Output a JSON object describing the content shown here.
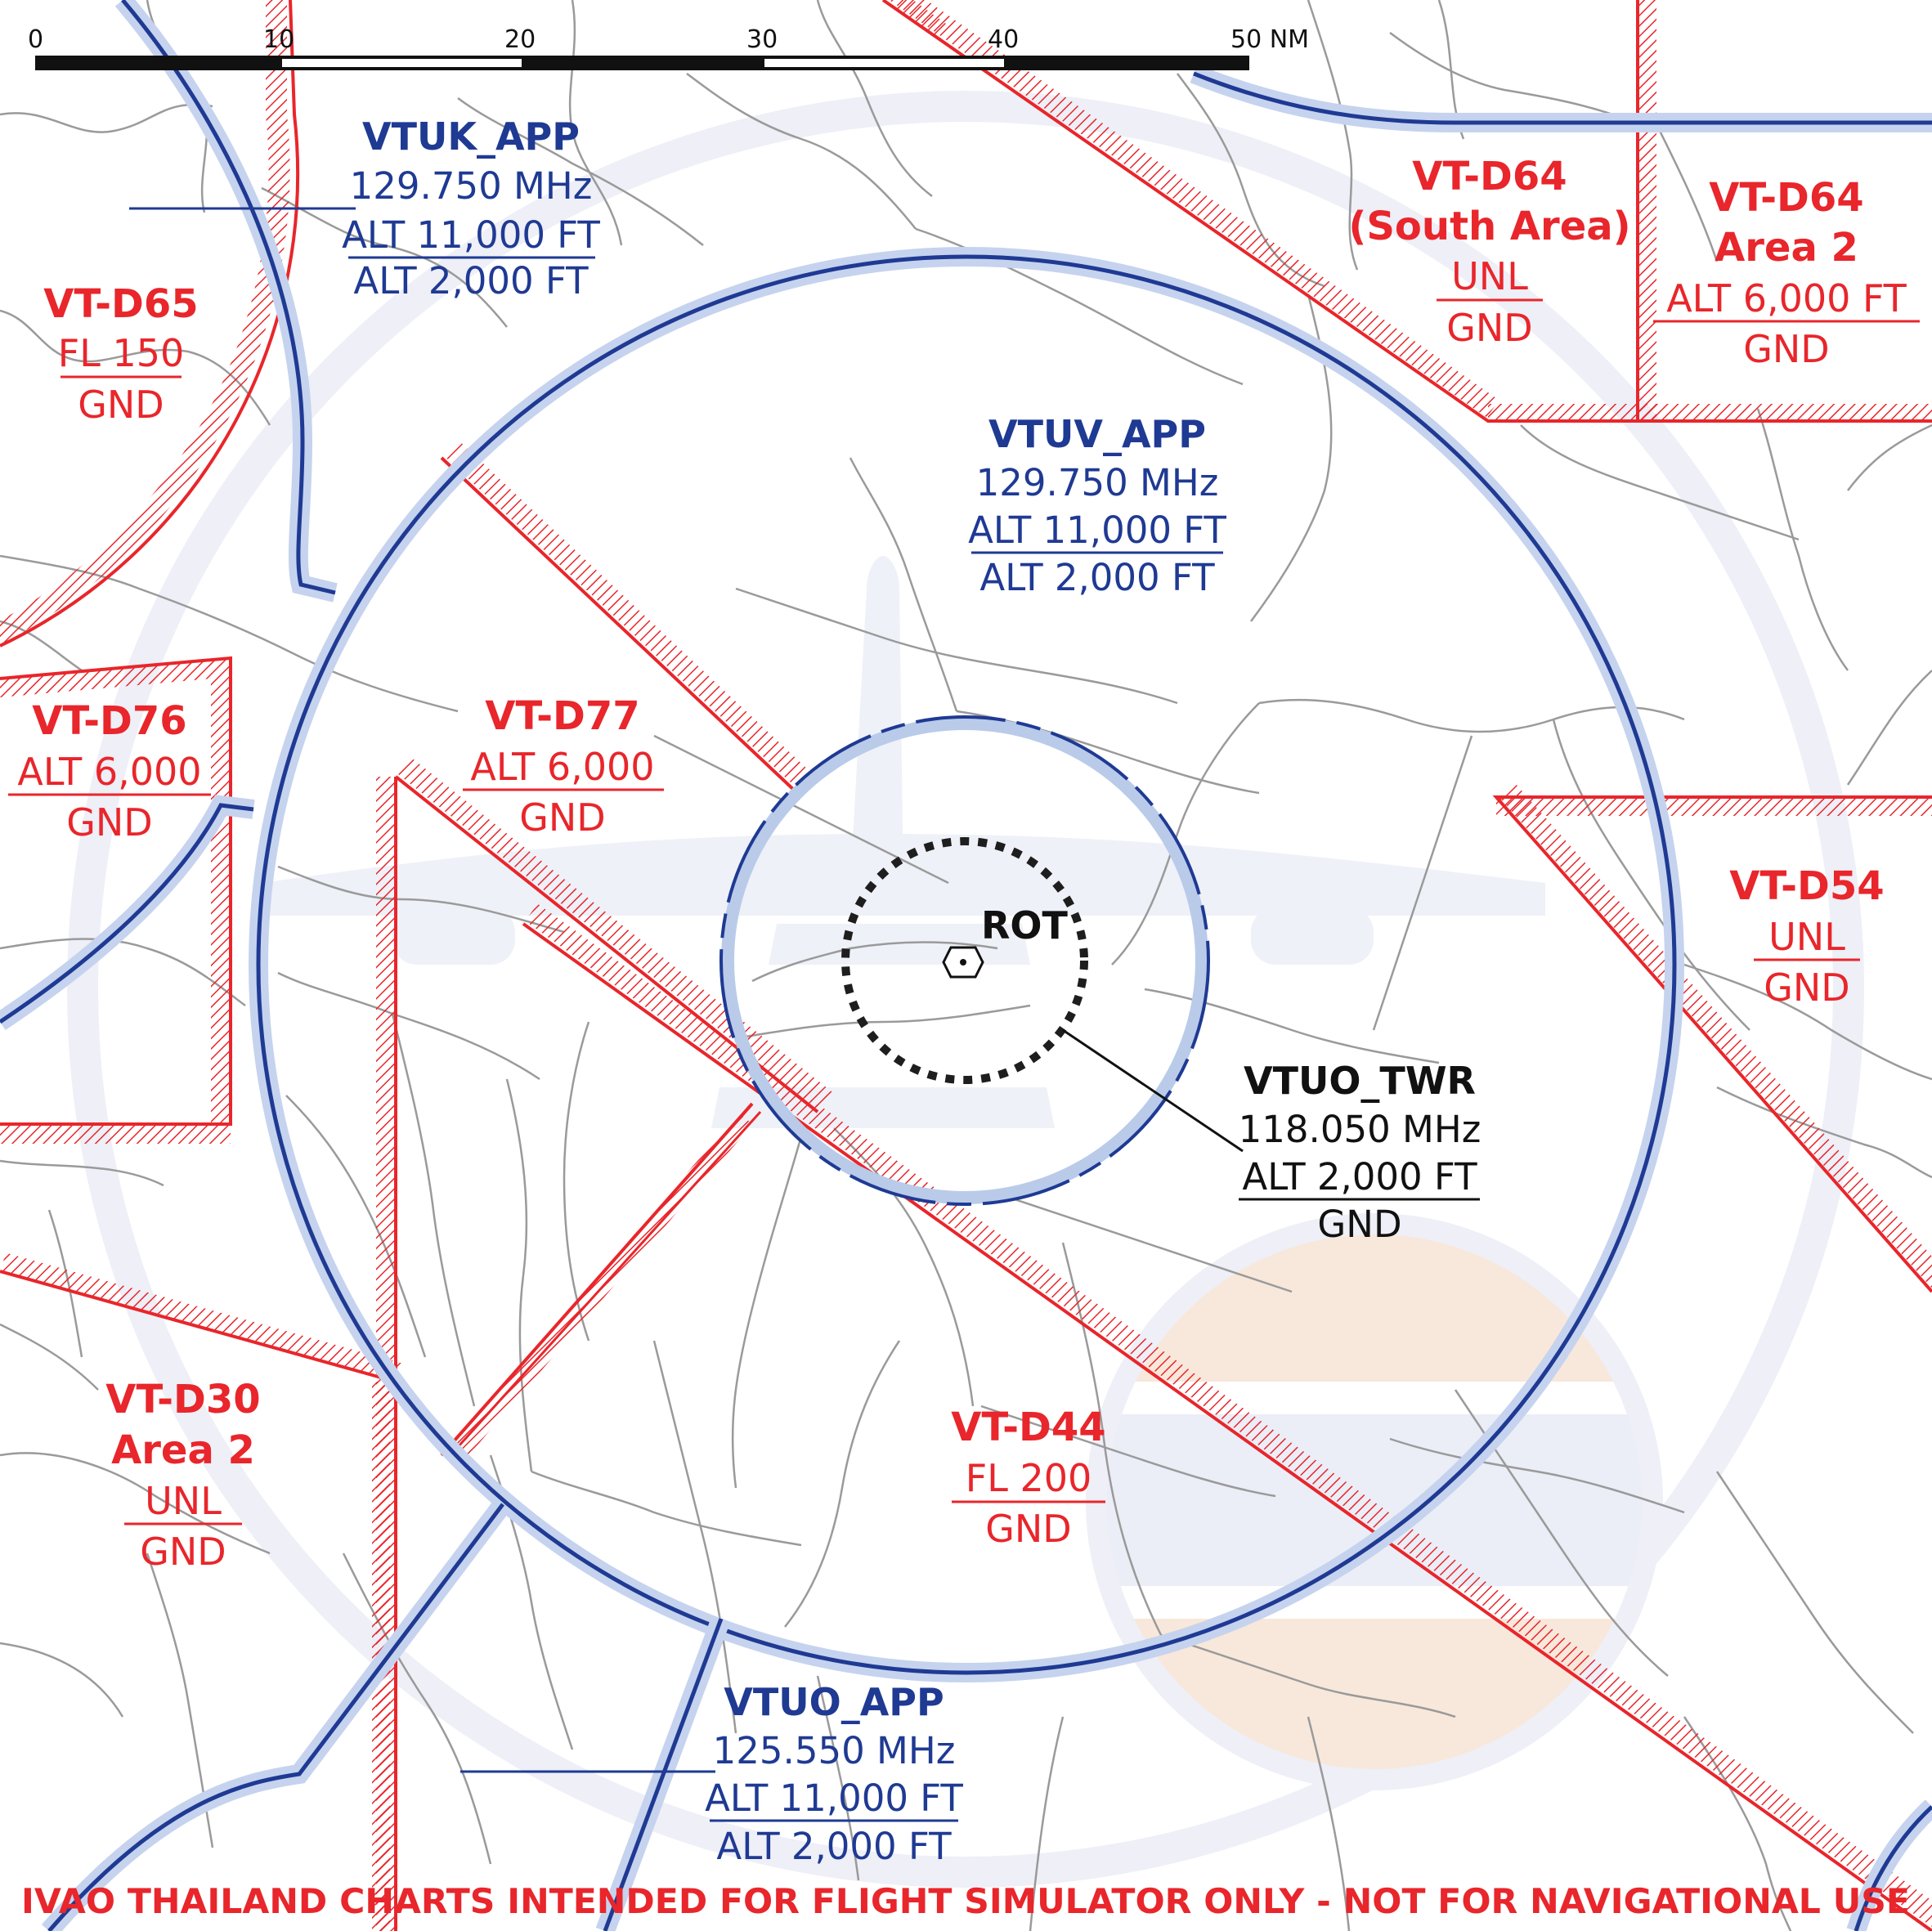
{
  "scale_bar": {
    "ticks": [
      "0",
      "10",
      "20",
      "30",
      "40",
      "50 NM"
    ]
  },
  "watermark": {
    "flag_colors": [
      "#f5d9c4",
      "#dfe4f2",
      "#f5d9c4"
    ]
  },
  "colors": {
    "restricted": "#e8262b",
    "approach": "#1f3a93",
    "tower_ring": "#b9cbe9",
    "road": "#9a9a9a"
  },
  "airport": {
    "code": "ROT",
    "icon": "airport-icon"
  },
  "approach": {
    "vtuk": {
      "name": "VTUK_APP",
      "freq": "129.750 MHz",
      "upper": "ALT 11,000 FT",
      "lower": "ALT 2,000 FT"
    },
    "vtuv": {
      "name": "VTUV_APP",
      "freq": "129.750 MHz",
      "upper": "ALT 11,000 FT",
      "lower": "ALT 2,000 FT"
    },
    "vtuo": {
      "name": "VTUO_APP",
      "freq": "125.550 MHz",
      "upper": "ALT 11,000 FT",
      "lower": "ALT 2,000 FT"
    }
  },
  "tower": {
    "name": "VTUO_TWR",
    "freq": "118.050 MHz",
    "upper": "ALT 2,000 FT",
    "lower": "GND"
  },
  "areas": {
    "d65": {
      "name": "VT-D65",
      "upper": "FL 150",
      "lower": "GND"
    },
    "d64s": {
      "name": "VT-D64",
      "sub": "(South Area)",
      "upper": "UNL",
      "lower": "GND"
    },
    "d64a2": {
      "name": "VT-D64",
      "sub": "Area 2",
      "upper": "ALT 6,000 FT",
      "lower": "GND"
    },
    "d76": {
      "name": "VT-D76",
      "upper": "ALT 6,000",
      "lower": "GND"
    },
    "d77": {
      "name": "VT-D77",
      "upper": "ALT 6,000",
      "lower": "GND"
    },
    "d54": {
      "name": "VT-D54",
      "upper": "UNL",
      "lower": "GND"
    },
    "d30": {
      "name": "VT-D30",
      "sub": "Area 2",
      "upper": "UNL",
      "lower": "GND"
    },
    "d44": {
      "name": "VT-D44",
      "upper": "FL 200",
      "lower": "GND"
    }
  },
  "disclaimer": "IVAO THAILAND CHARTS INTENDED FOR FLIGHT SIMULATOR ONLY - NOT FOR NAVIGATIONAL USE"
}
